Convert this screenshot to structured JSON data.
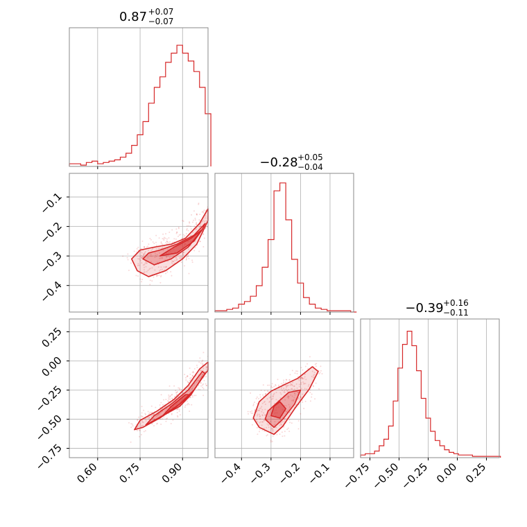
{
  "chart_data": {
    "type": "corner",
    "color": "#d62728",
    "grid": true,
    "parameters": [
      {
        "median": "0.87",
        "plus": "+0.07",
        "minus": "−0.07",
        "range": [
          0.5,
          0.99
        ]
      },
      {
        "median": "−0.28",
        "plus": "+0.05",
        "minus": "−0.04",
        "range": [
          -0.49,
          -0.02
        ]
      },
      {
        "median": "−0.39",
        "plus": "+0.16",
        "minus": "−0.11",
        "range": [
          -0.83,
          0.36
        ]
      }
    ],
    "ticks": {
      "p0": [
        {
          "value": 0.6,
          "label": "0.60"
        },
        {
          "value": 0.75,
          "label": "0.75"
        },
        {
          "value": 0.9,
          "label": "0.90"
        }
      ],
      "p1": [
        {
          "value": -0.4,
          "label": "−0.4"
        },
        {
          "value": -0.3,
          "label": "−0.3"
        },
        {
          "value": -0.2,
          "label": "−0.2"
        },
        {
          "value": -0.1,
          "label": "−0.1"
        }
      ],
      "p2": [
        {
          "value": -0.75,
          "label": "−0.75"
        },
        {
          "value": -0.5,
          "label": "−0.50"
        },
        {
          "value": -0.25,
          "label": "−0.25"
        },
        {
          "value": 0.0,
          "label": "0.00"
        },
        {
          "value": 0.25,
          "label": "0.25"
        }
      ]
    },
    "histograms": [
      {
        "param": 0,
        "bins": [
          [
            0.5,
            0.02
          ],
          [
            0.52,
            0.02
          ],
          [
            0.54,
            0.01
          ],
          [
            0.56,
            0.03
          ],
          [
            0.58,
            0.04
          ],
          [
            0.6,
            0.02
          ],
          [
            0.62,
            0.03
          ],
          [
            0.64,
            0.04
          ],
          [
            0.66,
            0.05
          ],
          [
            0.68,
            0.07
          ],
          [
            0.7,
            0.1
          ],
          [
            0.72,
            0.16
          ],
          [
            0.74,
            0.24
          ],
          [
            0.76,
            0.34
          ],
          [
            0.78,
            0.48
          ],
          [
            0.8,
            0.6
          ],
          [
            0.82,
            0.68
          ],
          [
            0.84,
            0.79
          ],
          [
            0.86,
            0.86
          ],
          [
            0.88,
            0.92
          ],
          [
            0.9,
            0.86
          ],
          [
            0.92,
            0.8
          ],
          [
            0.94,
            0.72
          ],
          [
            0.96,
            0.6
          ],
          [
            0.98,
            0.4
          ]
        ]
      },
      {
        "param": 1,
        "bins": [
          [
            -0.49,
            0.01
          ],
          [
            -0.47,
            0.01
          ],
          [
            -0.45,
            0.02
          ],
          [
            -0.43,
            0.03
          ],
          [
            -0.41,
            0.06
          ],
          [
            -0.39,
            0.08
          ],
          [
            -0.37,
            0.12
          ],
          [
            -0.35,
            0.2
          ],
          [
            -0.33,
            0.34
          ],
          [
            -0.31,
            0.55
          ],
          [
            -0.29,
            0.92
          ],
          [
            -0.27,
            0.98
          ],
          [
            -0.25,
            0.7
          ],
          [
            -0.23,
            0.4
          ],
          [
            -0.21,
            0.22
          ],
          [
            -0.19,
            0.11
          ],
          [
            -0.17,
            0.06
          ],
          [
            -0.15,
            0.03
          ],
          [
            -0.13,
            0.02
          ],
          [
            -0.11,
            0.01
          ],
          [
            -0.09,
            0.01
          ],
          [
            -0.07,
            0.01
          ],
          [
            -0.05,
            0.01
          ],
          [
            -0.03,
            0.0
          ]
        ]
      },
      {
        "param": 2,
        "bins": [
          [
            -0.83,
            0.02
          ],
          [
            -0.79,
            0.03
          ],
          [
            -0.75,
            0.03
          ],
          [
            -0.71,
            0.05
          ],
          [
            -0.67,
            0.09
          ],
          [
            -0.63,
            0.14
          ],
          [
            -0.59,
            0.24
          ],
          [
            -0.55,
            0.43
          ],
          [
            -0.51,
            0.68
          ],
          [
            -0.47,
            0.86
          ],
          [
            -0.43,
            0.96
          ],
          [
            -0.39,
            0.85
          ],
          [
            -0.35,
            0.66
          ],
          [
            -0.31,
            0.45
          ],
          [
            -0.27,
            0.3
          ],
          [
            -0.23,
            0.2
          ],
          [
            -0.19,
            0.13
          ],
          [
            -0.15,
            0.09
          ],
          [
            -0.11,
            0.06
          ],
          [
            -0.07,
            0.04
          ],
          [
            -0.03,
            0.03
          ],
          [
            0.01,
            0.02
          ],
          [
            0.05,
            0.02
          ],
          [
            0.09,
            0.02
          ],
          [
            0.13,
            0.01
          ],
          [
            0.17,
            0.01
          ],
          [
            0.21,
            0.01
          ],
          [
            0.25,
            0.01
          ],
          [
            0.29,
            0.01
          ],
          [
            0.33,
            0.01
          ]
        ]
      }
    ],
    "contours": [
      {
        "x_param": 0,
        "y_param": 1,
        "levels": [
          [
            [
              0.72,
              -0.31
            ],
            [
              0.74,
              -0.35
            ],
            [
              0.78,
              -0.37
            ],
            [
              0.84,
              -0.35
            ],
            [
              0.9,
              -0.31
            ],
            [
              0.95,
              -0.26
            ],
            [
              0.99,
              -0.18
            ],
            [
              0.99,
              -0.14
            ],
            [
              0.96,
              -0.19
            ],
            [
              0.91,
              -0.24
            ],
            [
              0.86,
              -0.26
            ],
            [
              0.8,
              -0.27
            ],
            [
              0.75,
              -0.28
            ]
          ],
          [
            [
              0.76,
              -0.31
            ],
            [
              0.8,
              -0.33
            ],
            [
              0.86,
              -0.31
            ],
            [
              0.92,
              -0.27
            ],
            [
              0.97,
              -0.21
            ],
            [
              0.98,
              -0.19
            ],
            [
              0.94,
              -0.23
            ],
            [
              0.88,
              -0.26
            ],
            [
              0.82,
              -0.28
            ],
            [
              0.78,
              -0.29
            ]
          ],
          [
            [
              0.82,
              -0.3
            ],
            [
              0.88,
              -0.29
            ],
            [
              0.94,
              -0.25
            ],
            [
              0.97,
              -0.21
            ],
            [
              0.93,
              -0.24
            ],
            [
              0.87,
              -0.27
            ]
          ]
        ]
      },
      {
        "x_param": 0,
        "y_param": 2,
        "levels": [
          [
            [
              0.73,
              -0.59
            ],
            [
              0.76,
              -0.57
            ],
            [
              0.82,
              -0.49
            ],
            [
              0.88,
              -0.39
            ],
            [
              0.93,
              -0.29
            ],
            [
              0.97,
              -0.14
            ],
            [
              0.99,
              -0.08
            ],
            [
              0.99,
              -0.01
            ],
            [
              0.96,
              -0.07
            ],
            [
              0.92,
              -0.21
            ],
            [
              0.87,
              -0.33
            ],
            [
              0.81,
              -0.43
            ],
            [
              0.75,
              -0.51
            ]
          ],
          [
            [
              0.77,
              -0.55
            ],
            [
              0.83,
              -0.47
            ],
            [
              0.89,
              -0.37
            ],
            [
              0.94,
              -0.25
            ],
            [
              0.98,
              -0.11
            ],
            [
              0.97,
              -0.09
            ],
            [
              0.92,
              -0.25
            ],
            [
              0.86,
              -0.37
            ],
            [
              0.8,
              -0.47
            ]
          ],
          [
            [
              0.83,
              -0.47
            ],
            [
              0.89,
              -0.39
            ],
            [
              0.93,
              -0.29
            ],
            [
              0.91,
              -0.29
            ],
            [
              0.86,
              -0.39
            ]
          ]
        ]
      },
      {
        "x_param": 1,
        "y_param": 2,
        "levels": [
          [
            [
              -0.36,
              -0.49
            ],
            [
              -0.34,
              -0.57
            ],
            [
              -0.29,
              -0.63
            ],
            [
              -0.26,
              -0.56
            ],
            [
              -0.22,
              -0.41
            ],
            [
              -0.17,
              -0.24
            ],
            [
              -0.14,
              -0.09
            ],
            [
              -0.16,
              -0.05
            ],
            [
              -0.21,
              -0.15
            ],
            [
              -0.26,
              -0.21
            ],
            [
              -0.3,
              -0.26
            ],
            [
              -0.34,
              -0.35
            ]
          ],
          [
            [
              -0.32,
              -0.5
            ],
            [
              -0.29,
              -0.57
            ],
            [
              -0.26,
              -0.5
            ],
            [
              -0.22,
              -0.37
            ],
            [
              -0.2,
              -0.25
            ],
            [
              -0.24,
              -0.27
            ],
            [
              -0.28,
              -0.36
            ],
            [
              -0.31,
              -0.43
            ]
          ],
          [
            [
              -0.3,
              -0.47
            ],
            [
              -0.27,
              -0.49
            ],
            [
              -0.25,
              -0.41
            ],
            [
              -0.27,
              -0.35
            ],
            [
              -0.29,
              -0.39
            ]
          ]
        ]
      }
    ]
  }
}
